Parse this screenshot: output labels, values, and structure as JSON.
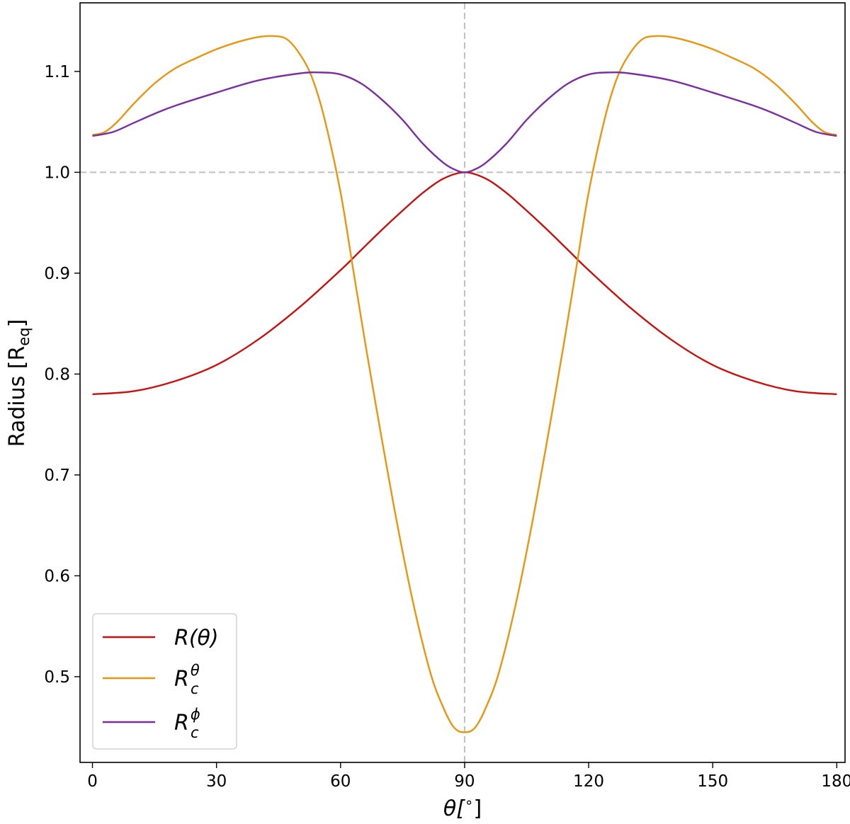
{
  "chart_data": {
    "type": "line",
    "xlabel": "θ[°]",
    "ylabel": "Radius [R_eq]",
    "ylabel_main": "Radius [R",
    "ylabel_sub": "eq",
    "ylabel_close": "]",
    "xlabel_main": "θ[",
    "xlabel_sup": "∘",
    "xlabel_close": "]",
    "xlim": [
      -3,
      182
    ],
    "ylim": [
      0.415,
      1.168
    ],
    "xticks": [
      0,
      30,
      60,
      90,
      120,
      150,
      180
    ],
    "xtick_labels": [
      "0",
      "30",
      "60",
      "90",
      "120",
      "150",
      "180"
    ],
    "yticks": [
      0.5,
      0.6,
      0.7,
      0.8,
      0.9,
      1.0,
      1.1
    ],
    "ytick_labels": [
      "0.5",
      "0.6",
      "0.7",
      "0.8",
      "0.9",
      "1.0",
      "1.1"
    ],
    "reference_lines": {
      "x": 90,
      "y": 1.0,
      "style": "dashed",
      "color": "#c0c0c0"
    },
    "grid": false,
    "legend_position": "lower-left",
    "series": [
      {
        "name": "R(θ)",
        "legend_main": "R(θ)",
        "legend_sup": "",
        "legend_sub": "",
        "color": "#c8100f",
        "x": [
          0,
          10,
          20,
          30,
          40,
          50,
          60,
          65,
          70,
          75,
          80,
          85,
          90,
          95,
          100,
          105,
          110,
          115,
          120,
          130,
          140,
          150,
          160,
          170,
          180
        ],
        "y": [
          0.78,
          0.783,
          0.793,
          0.809,
          0.834,
          0.866,
          0.903,
          0.923,
          0.943,
          0.962,
          0.98,
          0.994,
          1.0,
          0.994,
          0.98,
          0.962,
          0.943,
          0.923,
          0.903,
          0.866,
          0.834,
          0.809,
          0.793,
          0.783,
          0.78
        ]
      },
      {
        "name": "R_c^θ",
        "legend_main": "R",
        "legend_sup": "θ",
        "legend_sub": "c",
        "color": "#e8950f",
        "x": [
          0,
          3,
          6,
          10,
          15,
          20,
          25,
          30,
          35,
          40,
          44,
          47,
          50,
          53,
          56,
          60,
          63,
          66,
          70,
          74,
          78,
          82,
          85,
          87,
          88.5,
          90,
          91.5,
          93,
          95,
          98,
          102,
          106,
          110,
          114,
          117,
          120,
          124,
          127,
          130,
          133,
          136,
          140,
          145,
          150,
          155,
          160,
          165,
          170,
          174,
          177,
          180
        ],
        "y": [
          1.037,
          1.04,
          1.05,
          1.068,
          1.088,
          1.103,
          1.113,
          1.122,
          1.129,
          1.134,
          1.135,
          1.132,
          1.118,
          1.095,
          1.055,
          0.98,
          0.905,
          0.83,
          0.735,
          0.645,
          0.565,
          0.5,
          0.468,
          0.452,
          0.446,
          0.445,
          0.446,
          0.452,
          0.468,
          0.5,
          0.565,
          0.645,
          0.735,
          0.83,
          0.905,
          0.98,
          1.055,
          1.095,
          1.118,
          1.132,
          1.135,
          1.134,
          1.129,
          1.122,
          1.113,
          1.103,
          1.088,
          1.068,
          1.05,
          1.04,
          1.037
        ]
      },
      {
        "name": "R_c^φ",
        "legend_main": "R",
        "legend_sup": "ϕ",
        "legend_sub": "c",
        "color": "#7a2fa0",
        "x": [
          0,
          5,
          10,
          15,
          20,
          30,
          40,
          50,
          55,
          60,
          65,
          70,
          75,
          80,
          85,
          88,
          90,
          92,
          95,
          100,
          105,
          110,
          115,
          120,
          125,
          130,
          140,
          150,
          160,
          165,
          170,
          175,
          180
        ],
        "y": [
          1.036,
          1.04,
          1.049,
          1.058,
          1.066,
          1.079,
          1.091,
          1.098,
          1.099,
          1.097,
          1.088,
          1.072,
          1.052,
          1.028,
          1.009,
          1.002,
          1.0,
          1.002,
          1.009,
          1.028,
          1.052,
          1.072,
          1.088,
          1.097,
          1.099,
          1.098,
          1.091,
          1.079,
          1.066,
          1.058,
          1.049,
          1.04,
          1.036
        ]
      }
    ]
  }
}
